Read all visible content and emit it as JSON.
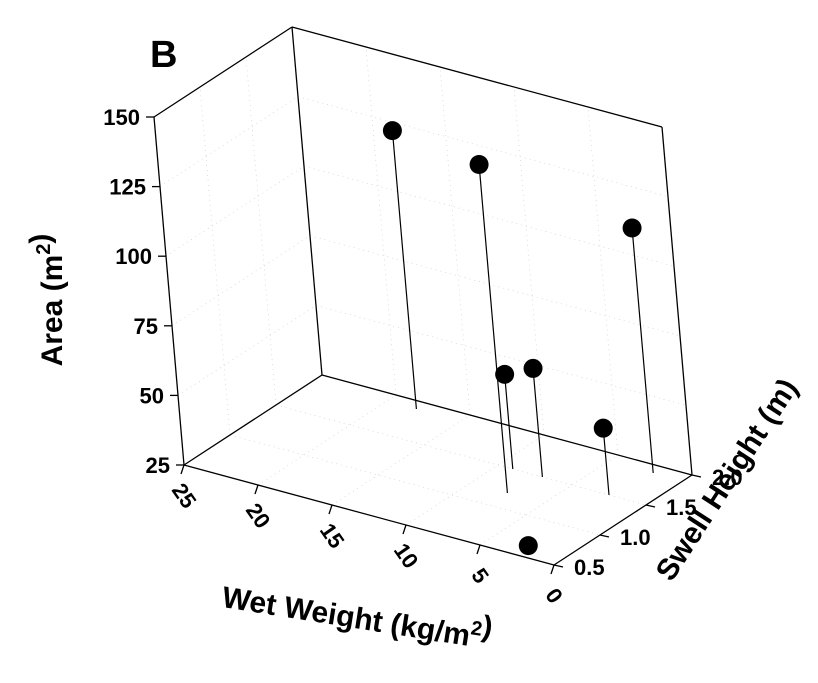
{
  "chart_data": {
    "type": "scatter",
    "title": "",
    "panel_label": "B",
    "xlabel": "Wet Weight (kg/m²)",
    "ylabel": "Swell Height (m)",
    "zlabel": "Area (m²)",
    "x_ticks": [
      "25",
      "20",
      "15",
      "10",
      "5",
      "0"
    ],
    "y_ticks": [
      "0.5",
      "1.0",
      "1.5",
      "2.0"
    ],
    "z_ticks": [
      "25",
      "50",
      "75",
      "100",
      "125",
      "150"
    ],
    "xlim": [
      0,
      25
    ],
    "ylim": [
      0.5,
      2.0
    ],
    "zlim": [
      25,
      150
    ],
    "grid": true,
    "points": [
      {
        "x": 18,
        "y": 1.9,
        "z": 125
      },
      {
        "x": 7.5,
        "y": 1.2,
        "z": 143
      },
      {
        "x": 2.0,
        "y": 1.9,
        "z": 113
      },
      {
        "x": 7.0,
        "y": 1.5,
        "z": 64
      },
      {
        "x": 9.0,
        "y": 1.5,
        "z": 59
      },
      {
        "x": 2.5,
        "y": 1.5,
        "z": 49
      },
      {
        "x": 2.0,
        "y": 0.55,
        "z": 28
      }
    ]
  }
}
